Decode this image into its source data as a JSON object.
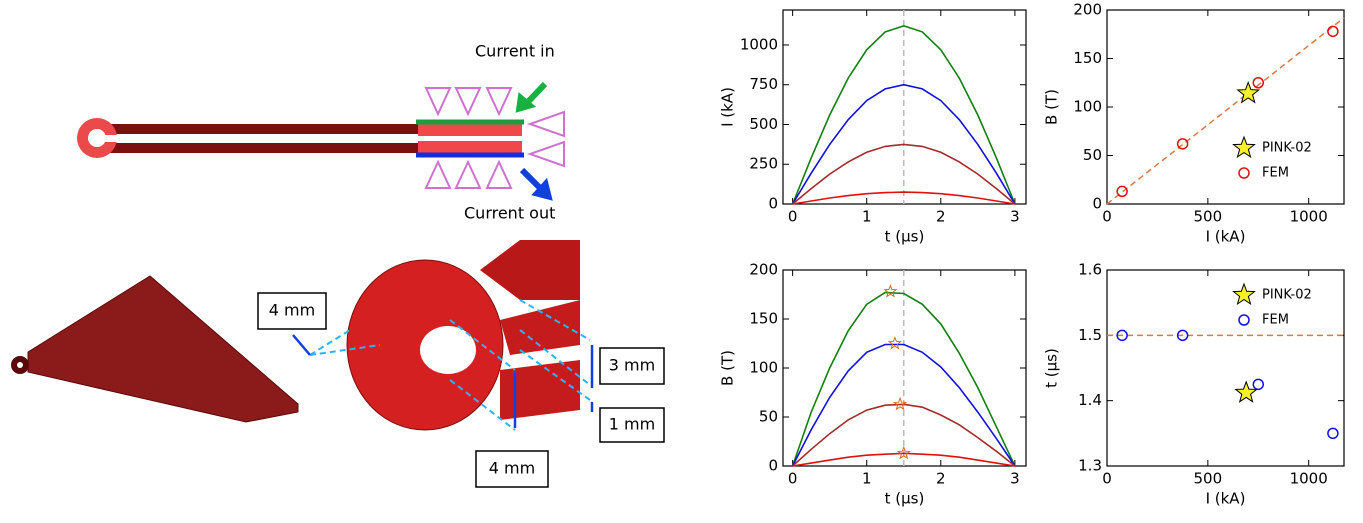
{
  "diagram": {
    "current_in": "Current in",
    "current_out": "Current out",
    "dim_left": "4 mm",
    "dim_gap": "3 mm",
    "dim_thin": "1 mm",
    "dim_bottom": "4 mm"
  },
  "chart_data": [
    {
      "type": "line",
      "xlabel": "t (μs)",
      "ylabel": "I (kA)",
      "xlim": [
        -0.13,
        3.15
      ],
      "ylim": [
        0,
        1220
      ],
      "xticks": [
        0,
        1,
        2,
        3
      ],
      "yticks": [
        0,
        250,
        500,
        750,
        1000
      ],
      "vline": 1.5,
      "x": [
        0,
        0.25,
        0.5,
        0.75,
        1,
        1.25,
        1.5,
        1.75,
        2,
        2.25,
        2.5,
        2.75,
        3
      ],
      "series": [
        {
          "color": "#108010",
          "values": [
            0,
            290,
            560,
            792,
            970,
            1082,
            1120,
            1082,
            970,
            792,
            560,
            290,
            0
          ]
        },
        {
          "color": "#1010e0",
          "values": [
            0,
            194,
            375,
            530,
            650,
            724,
            750,
            724,
            650,
            530,
            375,
            194,
            0
          ]
        },
        {
          "color": "#a52a2a",
          "values": [
            0,
            97,
            188,
            265,
            325,
            362,
            375,
            362,
            325,
            265,
            188,
            97,
            0
          ]
        },
        {
          "color": "#e01010",
          "values": [
            0,
            19,
            38,
            53,
            65,
            72,
            75,
            72,
            65,
            53,
            38,
            19,
            0
          ]
        }
      ]
    },
    {
      "type": "scatter",
      "xlabel": "I (kA)",
      "ylabel": "B (T)",
      "xlim": [
        0,
        1175
      ],
      "ylim": [
        0,
        200
      ],
      "xticks": [
        0,
        500,
        1000
      ],
      "yticks": [
        0,
        50,
        100,
        150,
        200
      ],
      "legend": "lower right",
      "fit_line": {
        "x": [
          0,
          1175
        ],
        "values": [
          0,
          192
        ],
        "color": "#d9784a"
      },
      "series": [
        {
          "name": "PINK-02",
          "marker": "star",
          "color": "#f5f028",
          "x": [
            700
          ],
          "values": [
            114
          ]
        },
        {
          "name": "FEM",
          "marker": "circle",
          "color": "#e01010",
          "x": [
            75,
            375,
            750,
            1120
          ],
          "values": [
            13,
            62,
            125,
            178
          ]
        }
      ]
    },
    {
      "type": "line",
      "xlabel": "t (μs)",
      "ylabel": "B (T)",
      "xlim": [
        -0.13,
        3.15
      ],
      "ylim": [
        0,
        200
      ],
      "xticks": [
        0,
        1,
        2,
        3
      ],
      "yticks": [
        0,
        50,
        100,
        150,
        200
      ],
      "vline": 1.5,
      "x": [
        0,
        0.25,
        0.5,
        0.75,
        1,
        1.25,
        1.5,
        1.75,
        2,
        2.25,
        2.5,
        2.75,
        3
      ],
      "series": [
        {
          "color": "#108010",
          "values": [
            0,
            55,
            100,
            138,
            165,
            177,
            176,
            165,
            145,
            115,
            80,
            40,
            0
          ]
        },
        {
          "color": "#1010e0",
          "values": [
            0,
            37,
            70,
            97,
            116,
            124,
            124,
            116,
            101,
            80,
            55,
            28,
            0
          ]
        },
        {
          "color": "#a52a2a",
          "values": [
            0,
            17,
            33,
            47,
            57,
            62,
            63,
            60,
            52,
            42,
            29,
            15,
            0
          ]
        },
        {
          "color": "#e01010",
          "values": [
            0,
            3,
            6,
            9,
            11,
            12,
            13,
            12,
            11,
            9,
            6,
            3,
            0
          ]
        }
      ],
      "peaks": {
        "marker": "star",
        "color": "#d2691e",
        "x": [
          1.32,
          1.38,
          1.45,
          1.5
        ],
        "values": [
          178,
          125,
          63,
          13
        ]
      }
    },
    {
      "type": "scatter",
      "xlabel": "I (kA)",
      "ylabel": "t (μs)",
      "xlim": [
        0,
        1175
      ],
      "ylim": [
        1.3,
        1.6
      ],
      "xticks": [
        0,
        500,
        1000
      ],
      "yticks": [
        1.3,
        1.4,
        1.5,
        1.6
      ],
      "legend": "upper right",
      "fit_line": {
        "x": [
          0,
          1175
        ],
        "values": [
          1.5,
          1.5
        ],
        "color": "#d9784a"
      },
      "series": [
        {
          "name": "PINK-02",
          "marker": "star",
          "color": "#f5f028",
          "x": [
            690
          ],
          "values": [
            1.412
          ]
        },
        {
          "name": "FEM",
          "marker": "circle",
          "color": "#1010e0",
          "x": [
            75,
            375,
            750,
            1120
          ],
          "values": [
            1.5,
            1.5,
            1.425,
            1.35
          ]
        }
      ]
    }
  ]
}
